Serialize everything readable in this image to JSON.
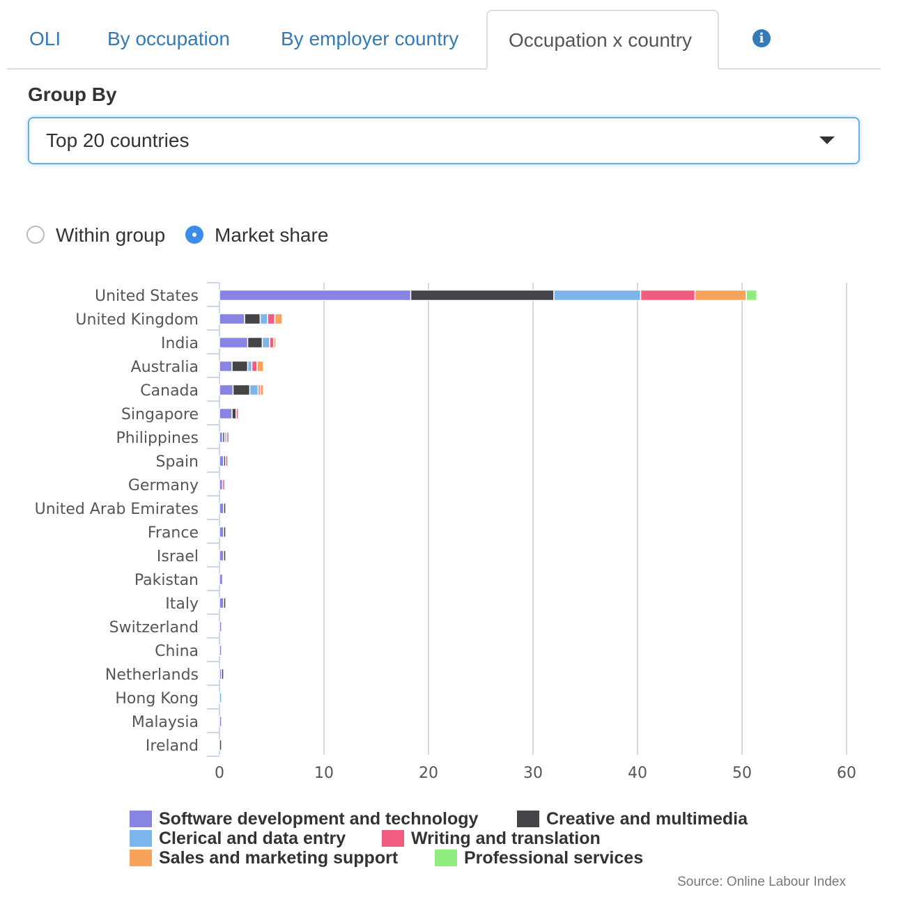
{
  "tabs": [
    {
      "label": "OLI",
      "active": false
    },
    {
      "label": "By occupation",
      "active": false
    },
    {
      "label": "By employer country",
      "active": false
    },
    {
      "label": "Occupation x country",
      "active": true
    }
  ],
  "group_by": {
    "label": "Group By",
    "selected": "Top 20 countries"
  },
  "view_mode": {
    "options": [
      {
        "label": "Within group",
        "checked": false
      },
      {
        "label": "Market share",
        "checked": true
      }
    ]
  },
  "colors": {
    "accent": "#337ab7",
    "series": [
      "#8884e3",
      "#434348",
      "#7cb5ec",
      "#f15c80",
      "#f7a35c",
      "#90ed7d"
    ]
  },
  "chart_data": {
    "type": "bar",
    "orientation": "horizontal",
    "stacked": true,
    "categories": [
      "United States",
      "United Kingdom",
      "India",
      "Australia",
      "Canada",
      "Singapore",
      "Philippines",
      "Spain",
      "Germany",
      "United Arab Emirates",
      "France",
      "Israel",
      "Pakistan",
      "Italy",
      "Switzerland",
      "China",
      "Netherlands",
      "Hong Kong",
      "Malaysia",
      "Ireland"
    ],
    "series": [
      {
        "name": "Software development and technology",
        "values": [
          18.3,
          2.4,
          2.7,
          1.2,
          1.3,
          1.2,
          0.3,
          0.4,
          0.3,
          0.4,
          0.4,
          0.4,
          0.3,
          0.4,
          0.2,
          0.2,
          0.2,
          0.0,
          0.2,
          0.0
        ]
      },
      {
        "name": "Creative and multimedia",
        "values": [
          13.7,
          1.5,
          1.4,
          1.5,
          1.6,
          0.4,
          0.2,
          0.2,
          0.0,
          0.2,
          0.2,
          0.2,
          0.0,
          0.2,
          0.0,
          0.0,
          0.2,
          0.0,
          0.0,
          0.2
        ]
      },
      {
        "name": "Clerical and data entry",
        "values": [
          8.3,
          0.7,
          0.7,
          0.4,
          0.8,
          0.0,
          0.2,
          0.0,
          0.0,
          0.0,
          0.0,
          0.0,
          0.0,
          0.0,
          0.0,
          0.0,
          0.0,
          0.2,
          0.0,
          0.0
        ]
      },
      {
        "name": "Writing and translation",
        "values": [
          5.2,
          0.7,
          0.4,
          0.5,
          0.2,
          0.2,
          0.2,
          0.2,
          0.2,
          0.0,
          0.0,
          0.0,
          0.0,
          0.0,
          0.0,
          0.0,
          0.0,
          0.0,
          0.0,
          0.0
        ]
      },
      {
        "name": "Sales and marketing support",
        "values": [
          4.9,
          0.7,
          0.2,
          0.6,
          0.3,
          0.0,
          0.0,
          0.0,
          0.0,
          0.0,
          0.0,
          0.0,
          0.0,
          0.0,
          0.0,
          0.0,
          0.0,
          0.0,
          0.0,
          0.0
        ]
      },
      {
        "name": "Professional services",
        "values": [
          1.0,
          0.0,
          0.0,
          0.0,
          0.0,
          0.0,
          0.0,
          0.0,
          0.0,
          0.0,
          0.0,
          0.0,
          0.0,
          0.0,
          0.0,
          0.0,
          0.0,
          0.0,
          0.0,
          0.0
        ]
      }
    ],
    "xlim": [
      0,
      60
    ],
    "xticks": [
      0,
      10,
      20,
      30,
      40,
      50,
      60
    ],
    "grid": true,
    "legend_position": "bottom",
    "source": "Source: Online Labour Index"
  }
}
